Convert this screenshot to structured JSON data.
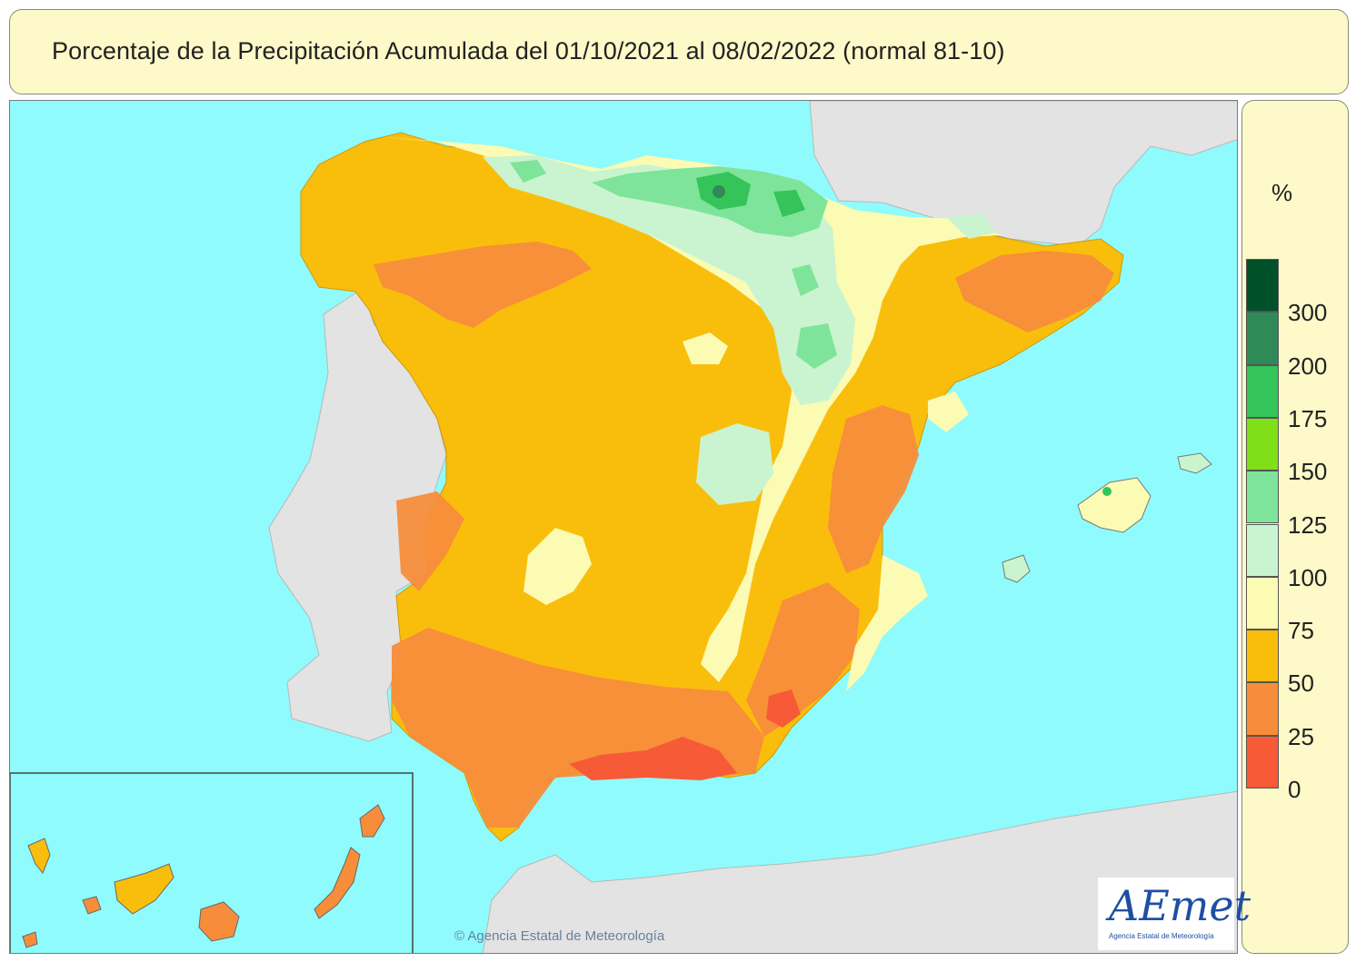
{
  "title": "Porcentaje de la Precipitación Acumulada del 01/10/2021 al 08/02/2022 (normal 81-10)",
  "legend": {
    "unit": "%",
    "ticks": [
      "300",
      "200",
      "175",
      "150",
      "125",
      "100",
      "75",
      "50",
      "25",
      "0"
    ],
    "colors": [
      "#00502a",
      "#2e8b57",
      "#35c45a",
      "#7fe01a",
      "#7ee49a",
      "#c9f4cf",
      "#fbfbb4",
      "#f9be0c",
      "#f78d3b",
      "#f75a37"
    ]
  },
  "credit": "© Agencia Estatal de Meteorología",
  "logo": {
    "name": "AEmet",
    "subtitle": "Agencia Estatal de Meteorología"
  },
  "colors": {
    "sea": "#8ffbfc",
    "land_outside": "#e3e3e3",
    "panel_bg": "#fdf9c8"
  }
}
